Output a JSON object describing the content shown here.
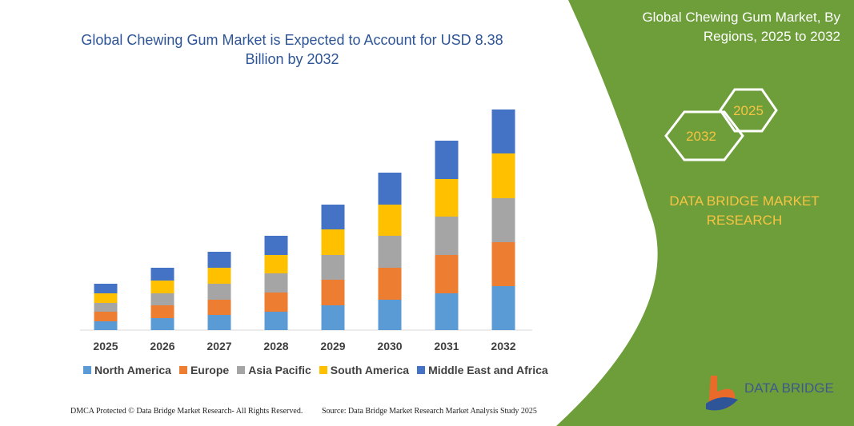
{
  "chart_data": {
    "type": "bar",
    "stacked": true,
    "title": "Global Chewing Gum Market is Expected to Account for USD 8.38 Billion by 2032",
    "categories": [
      "2025",
      "2026",
      "2027",
      "2028",
      "2029",
      "2030",
      "2031",
      "2032"
    ],
    "series": [
      {
        "name": "North America",
        "color": "#5b9bd5",
        "values": [
          11,
          15,
          19,
          23,
          31,
          38,
          46,
          55
        ]
      },
      {
        "name": "Europe",
        "color": "#ed7d31",
        "values": [
          12,
          16,
          19,
          24,
          32,
          40,
          48,
          55
        ]
      },
      {
        "name": "Asia Pacific",
        "color": "#a5a5a5",
        "values": [
          11,
          15,
          20,
          24,
          31,
          40,
          48,
          55
        ]
      },
      {
        "name": "South America",
        "color": "#ffc000",
        "values": [
          12,
          16,
          20,
          23,
          32,
          39,
          47,
          56
        ]
      },
      {
        "name": "Middle East and Africa",
        "color": "#4472c4",
        "values": [
          12,
          16,
          20,
          24,
          31,
          40,
          48,
          55
        ]
      }
    ]
  },
  "side_panel": {
    "title": "Global Chewing Gum Market, By Regions, 2025 to 2032",
    "hexagons": [
      "2025",
      "2032"
    ],
    "brand": "DATA BRIDGE MARKET RESEARCH"
  },
  "logo": {
    "text": "DATA BRIDGE"
  },
  "footer": {
    "left": "DMCA Protected © Data Bridge Market Research- All Rights Reserved.",
    "right": "Source: Data Bridge Market Research  Market Analysis Study 2025"
  }
}
